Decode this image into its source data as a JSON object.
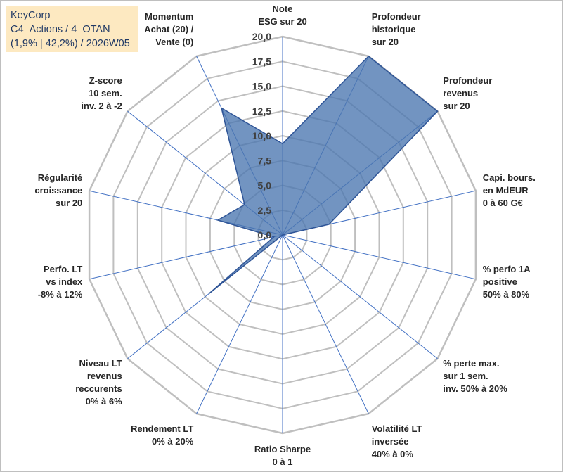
{
  "header": {
    "company": "KeyCorp",
    "category": "C4_Actions / 4_OTAN",
    "stats": "(1,9% | 42,2%) / 2026W05"
  },
  "chart_data": {
    "type": "radar",
    "title": "KeyCorp",
    "rmax": 20,
    "ticks": [
      0,
      2.5,
      5,
      7.5,
      10,
      12.5,
      15,
      17.5,
      20
    ],
    "tick_labels": [
      "0,0",
      "2,5",
      "5,0",
      "7,5",
      "10,0",
      "12,5",
      "15,0",
      "17,5",
      "20,0"
    ],
    "axes": [
      {
        "label": [
          "Note",
          "ESG sur 20"
        ],
        "value": 9.2
      },
      {
        "label": [
          "Profondeur",
          "historique",
          "sur 20"
        ],
        "value": 20
      },
      {
        "label": [
          "Profondeur",
          "revenus",
          "sur 20"
        ],
        "value": 20
      },
      {
        "label": [
          "Capi. bours.",
          "en MdEUR",
          "0 à 60 G€"
        ],
        "value": 4.8
      },
      {
        "label": [
          "% perfo 1A",
          "positive",
          "50% à 80%"
        ],
        "value": 0
      },
      {
        "label": [
          "% perte max.",
          "sur 1 sem.",
          "inv. 50% à 20%"
        ],
        "value": 0
      },
      {
        "label": [
          "Volatilité LT",
          "inversée",
          "40% à 0%"
        ],
        "value": 0
      },
      {
        "label": [
          "Ratio Sharpe",
          "0 à 1"
        ],
        "value": 0
      },
      {
        "label": [
          "Rendement LT",
          "0% à 20%"
        ],
        "value": 0
      },
      {
        "label": [
          "Niveau LT",
          "revenus",
          "reccurents",
          "0% à 6%"
        ],
        "value": 9.5
      },
      {
        "label": [
          "Perfo. LT",
          "vs index",
          "-8% à 12%"
        ],
        "value": 0.9
      },
      {
        "label": [
          "Régularité",
          "croissance",
          "sur 20"
        ],
        "value": 6.7
      },
      {
        "label": [
          "Z-score",
          "10 sem.",
          "inv. 2 à -2"
        ],
        "value": 4.9
      },
      {
        "label": [
          "Momentum",
          "Achat (20) /",
          "Vente (0)"
        ],
        "value": 14.2
      }
    ],
    "colors": {
      "fill": "#4a76b0",
      "stroke": "#2f5597",
      "grid": "#bfbfbf",
      "spoke": "#4472c4"
    }
  }
}
